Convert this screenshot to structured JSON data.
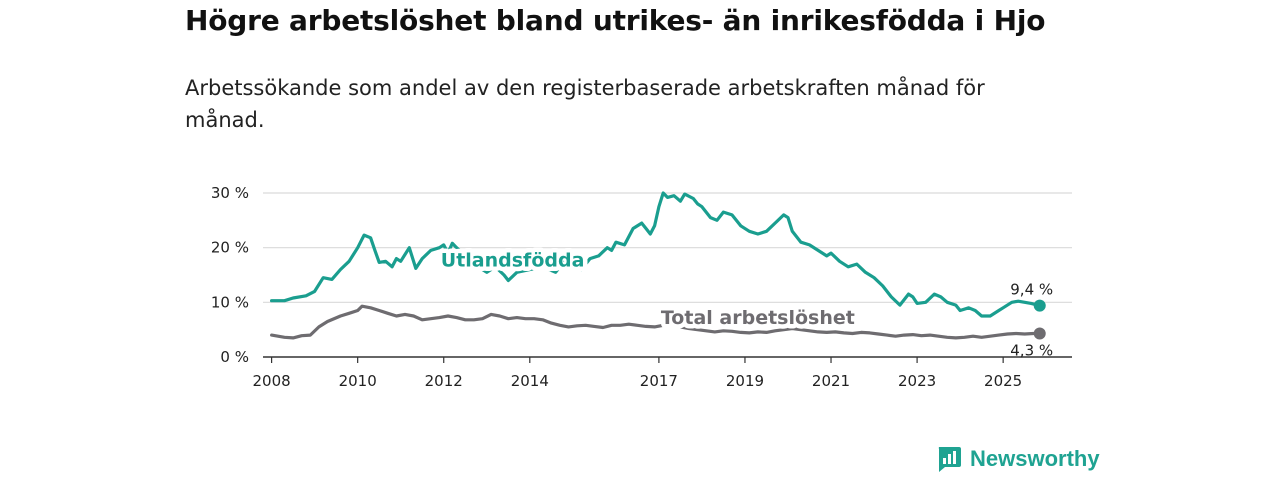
{
  "header": {
    "title": "Högre arbetslöshet bland utrikes- än inrikesfödda i Hjo",
    "subtitle": "Arbetssökande som andel av den registerbaserade arbetskraften månad för månad."
  },
  "brand": {
    "name": "Newsworthy",
    "color": "#1fa392"
  },
  "colors": {
    "foreign": "#1a9e8f",
    "total": "#6e6c70",
    "grid": "#d9d9d9",
    "axis": "#333333"
  },
  "chart_data": {
    "type": "line",
    "title": "Högre arbetslöshet bland utrikes- än inrikesfödda i Hjo",
    "subtitle": "Arbetssökande som andel av den registerbaserade arbetskraften månad för månad.",
    "xlabel": "",
    "ylabel": "",
    "xlim": [
      2007.8,
      2026.6
    ],
    "ylim": [
      0,
      30
    ],
    "y_ticks": [
      0,
      10,
      20,
      30
    ],
    "y_tick_labels": [
      "0 %",
      "10 %",
      "20 %",
      "30 %"
    ],
    "x_ticks": [
      2008,
      2010,
      2012,
      2014,
      2017,
      2019,
      2021,
      2023,
      2025
    ],
    "x_tick_labels": [
      "2008",
      "2010",
      "2012",
      "2014",
      "2017",
      "2019",
      "2021",
      "2023",
      "2025"
    ],
    "grid": true,
    "series": [
      {
        "name": "Utlandsfödda",
        "label": "Utlandsfödda",
        "color": "#1a9e8f",
        "end_label": "9,4 %",
        "points": [
          [
            2008.0,
            10.3
          ],
          [
            2008.3,
            10.3
          ],
          [
            2008.5,
            10.8
          ],
          [
            2008.8,
            11.2
          ],
          [
            2009.0,
            12.0
          ],
          [
            2009.2,
            14.5
          ],
          [
            2009.4,
            14.2
          ],
          [
            2009.6,
            16.0
          ],
          [
            2009.8,
            17.5
          ],
          [
            2010.0,
            20.0
          ],
          [
            2010.15,
            22.3
          ],
          [
            2010.3,
            21.8
          ],
          [
            2010.4,
            19.5
          ],
          [
            2010.5,
            17.3
          ],
          [
            2010.65,
            17.5
          ],
          [
            2010.8,
            16.5
          ],
          [
            2010.9,
            18.0
          ],
          [
            2011.0,
            17.5
          ],
          [
            2011.2,
            20.0
          ],
          [
            2011.35,
            16.2
          ],
          [
            2011.5,
            18.0
          ],
          [
            2011.7,
            19.5
          ],
          [
            2011.9,
            20.0
          ],
          [
            2012.0,
            20.5
          ],
          [
            2012.1,
            19.0
          ],
          [
            2012.2,
            20.8
          ],
          [
            2012.3,
            20.0
          ],
          [
            2012.5,
            18.5
          ],
          [
            2012.7,
            17.0
          ],
          [
            2013.0,
            15.5
          ],
          [
            2013.2,
            16.5
          ],
          [
            2013.4,
            15.0
          ],
          [
            2013.5,
            14.0
          ],
          [
            2013.7,
            15.5
          ],
          [
            2014.0,
            16.0
          ],
          [
            2014.3,
            16.5
          ],
          [
            2014.6,
            15.5
          ],
          [
            2014.8,
            17.5
          ],
          [
            2015.0,
            17.0
          ],
          [
            2015.2,
            16.0
          ],
          [
            2015.4,
            18.0
          ],
          [
            2015.6,
            18.5
          ],
          [
            2015.8,
            20.0
          ],
          [
            2015.9,
            19.5
          ],
          [
            2016.0,
            21.0
          ],
          [
            2016.2,
            20.5
          ],
          [
            2016.4,
            23.5
          ],
          [
            2016.6,
            24.5
          ],
          [
            2016.7,
            23.5
          ],
          [
            2016.8,
            22.5
          ],
          [
            2016.9,
            24.0
          ],
          [
            2017.0,
            27.5
          ],
          [
            2017.1,
            30.0
          ],
          [
            2017.2,
            29.2
          ],
          [
            2017.35,
            29.5
          ],
          [
            2017.5,
            28.5
          ],
          [
            2017.6,
            29.8
          ],
          [
            2017.8,
            29.0
          ],
          [
            2017.9,
            28.0
          ],
          [
            2018.0,
            27.5
          ],
          [
            2018.2,
            25.5
          ],
          [
            2018.35,
            25.0
          ],
          [
            2018.5,
            26.5
          ],
          [
            2018.7,
            26.0
          ],
          [
            2018.9,
            24.0
          ],
          [
            2019.1,
            23.0
          ],
          [
            2019.3,
            22.5
          ],
          [
            2019.5,
            23.0
          ],
          [
            2019.7,
            24.5
          ],
          [
            2019.9,
            26.0
          ],
          [
            2020.0,
            25.5
          ],
          [
            2020.1,
            23.0
          ],
          [
            2020.3,
            21.0
          ],
          [
            2020.5,
            20.5
          ],
          [
            2020.7,
            19.5
          ],
          [
            2020.9,
            18.5
          ],
          [
            2021.0,
            19.0
          ],
          [
            2021.2,
            17.5
          ],
          [
            2021.4,
            16.5
          ],
          [
            2021.6,
            17.0
          ],
          [
            2021.8,
            15.5
          ],
          [
            2021.9,
            15.0
          ],
          [
            2022.0,
            14.5
          ],
          [
            2022.2,
            13.0
          ],
          [
            2022.4,
            11.0
          ],
          [
            2022.6,
            9.5
          ],
          [
            2022.8,
            11.5
          ],
          [
            2022.9,
            11.0
          ],
          [
            2023.0,
            9.8
          ],
          [
            2023.2,
            10.0
          ],
          [
            2023.4,
            11.5
          ],
          [
            2023.55,
            11.0
          ],
          [
            2023.7,
            10.0
          ],
          [
            2023.9,
            9.5
          ],
          [
            2024.0,
            8.5
          ],
          [
            2024.2,
            9.0
          ],
          [
            2024.35,
            8.5
          ],
          [
            2024.5,
            7.5
          ],
          [
            2024.7,
            7.5
          ],
          [
            2024.9,
            8.5
          ],
          [
            2025.0,
            9.0
          ],
          [
            2025.2,
            10.0
          ],
          [
            2025.35,
            10.2
          ],
          [
            2025.5,
            10.0
          ],
          [
            2025.65,
            9.8
          ],
          [
            2025.85,
            9.4
          ]
        ]
      },
      {
        "name": "Total arbetslöshet",
        "label": "Total arbetslöshet",
        "color": "#6e6c70",
        "end_label": "4,3 %",
        "points": [
          [
            2008.0,
            4.0
          ],
          [
            2008.3,
            3.6
          ],
          [
            2008.5,
            3.5
          ],
          [
            2008.7,
            3.9
          ],
          [
            2008.9,
            4.0
          ],
          [
            2009.1,
            5.5
          ],
          [
            2009.3,
            6.5
          ],
          [
            2009.6,
            7.5
          ],
          [
            2009.8,
            8.0
          ],
          [
            2010.0,
            8.5
          ],
          [
            2010.1,
            9.3
          ],
          [
            2010.3,
            9.0
          ],
          [
            2010.5,
            8.5
          ],
          [
            2010.7,
            8.0
          ],
          [
            2010.9,
            7.5
          ],
          [
            2011.1,
            7.8
          ],
          [
            2011.3,
            7.5
          ],
          [
            2011.5,
            6.8
          ],
          [
            2011.7,
            7.0
          ],
          [
            2011.9,
            7.2
          ],
          [
            2012.1,
            7.5
          ],
          [
            2012.3,
            7.2
          ],
          [
            2012.5,
            6.8
          ],
          [
            2012.7,
            6.8
          ],
          [
            2012.9,
            7.0
          ],
          [
            2013.1,
            7.8
          ],
          [
            2013.3,
            7.5
          ],
          [
            2013.5,
            7.0
          ],
          [
            2013.7,
            7.2
          ],
          [
            2013.9,
            7.0
          ],
          [
            2014.1,
            7.0
          ],
          [
            2014.3,
            6.8
          ],
          [
            2014.5,
            6.2
          ],
          [
            2014.7,
            5.8
          ],
          [
            2014.9,
            5.5
          ],
          [
            2015.1,
            5.7
          ],
          [
            2015.3,
            5.8
          ],
          [
            2015.5,
            5.6
          ],
          [
            2015.7,
            5.4
          ],
          [
            2015.9,
            5.8
          ],
          [
            2016.1,
            5.8
          ],
          [
            2016.3,
            6.0
          ],
          [
            2016.5,
            5.8
          ],
          [
            2016.7,
            5.6
          ],
          [
            2016.9,
            5.5
          ],
          [
            2017.1,
            5.8
          ],
          [
            2017.3,
            6.0
          ],
          [
            2017.5,
            5.5
          ],
          [
            2017.7,
            5.2
          ],
          [
            2017.9,
            5.0
          ],
          [
            2018.1,
            4.8
          ],
          [
            2018.3,
            4.6
          ],
          [
            2018.5,
            4.8
          ],
          [
            2018.7,
            4.7
          ],
          [
            2018.9,
            4.5
          ],
          [
            2019.1,
            4.4
          ],
          [
            2019.3,
            4.6
          ],
          [
            2019.5,
            4.5
          ],
          [
            2019.7,
            4.8
          ],
          [
            2019.9,
            5.0
          ],
          [
            2020.1,
            5.2
          ],
          [
            2020.3,
            5.0
          ],
          [
            2020.5,
            4.8
          ],
          [
            2020.7,
            4.6
          ],
          [
            2020.9,
            4.5
          ],
          [
            2021.1,
            4.6
          ],
          [
            2021.3,
            4.4
          ],
          [
            2021.5,
            4.3
          ],
          [
            2021.7,
            4.5
          ],
          [
            2021.9,
            4.4
          ],
          [
            2022.1,
            4.2
          ],
          [
            2022.3,
            4.0
          ],
          [
            2022.5,
            3.8
          ],
          [
            2022.7,
            4.0
          ],
          [
            2022.9,
            4.1
          ],
          [
            2023.1,
            3.9
          ],
          [
            2023.3,
            4.0
          ],
          [
            2023.5,
            3.8
          ],
          [
            2023.7,
            3.6
          ],
          [
            2023.9,
            3.5
          ],
          [
            2024.1,
            3.6
          ],
          [
            2024.3,
            3.8
          ],
          [
            2024.5,
            3.6
          ],
          [
            2024.7,
            3.8
          ],
          [
            2024.9,
            4.0
          ],
          [
            2025.1,
            4.2
          ],
          [
            2025.3,
            4.3
          ],
          [
            2025.5,
            4.2
          ],
          [
            2025.7,
            4.3
          ],
          [
            2025.85,
            4.3
          ]
        ]
      }
    ]
  }
}
